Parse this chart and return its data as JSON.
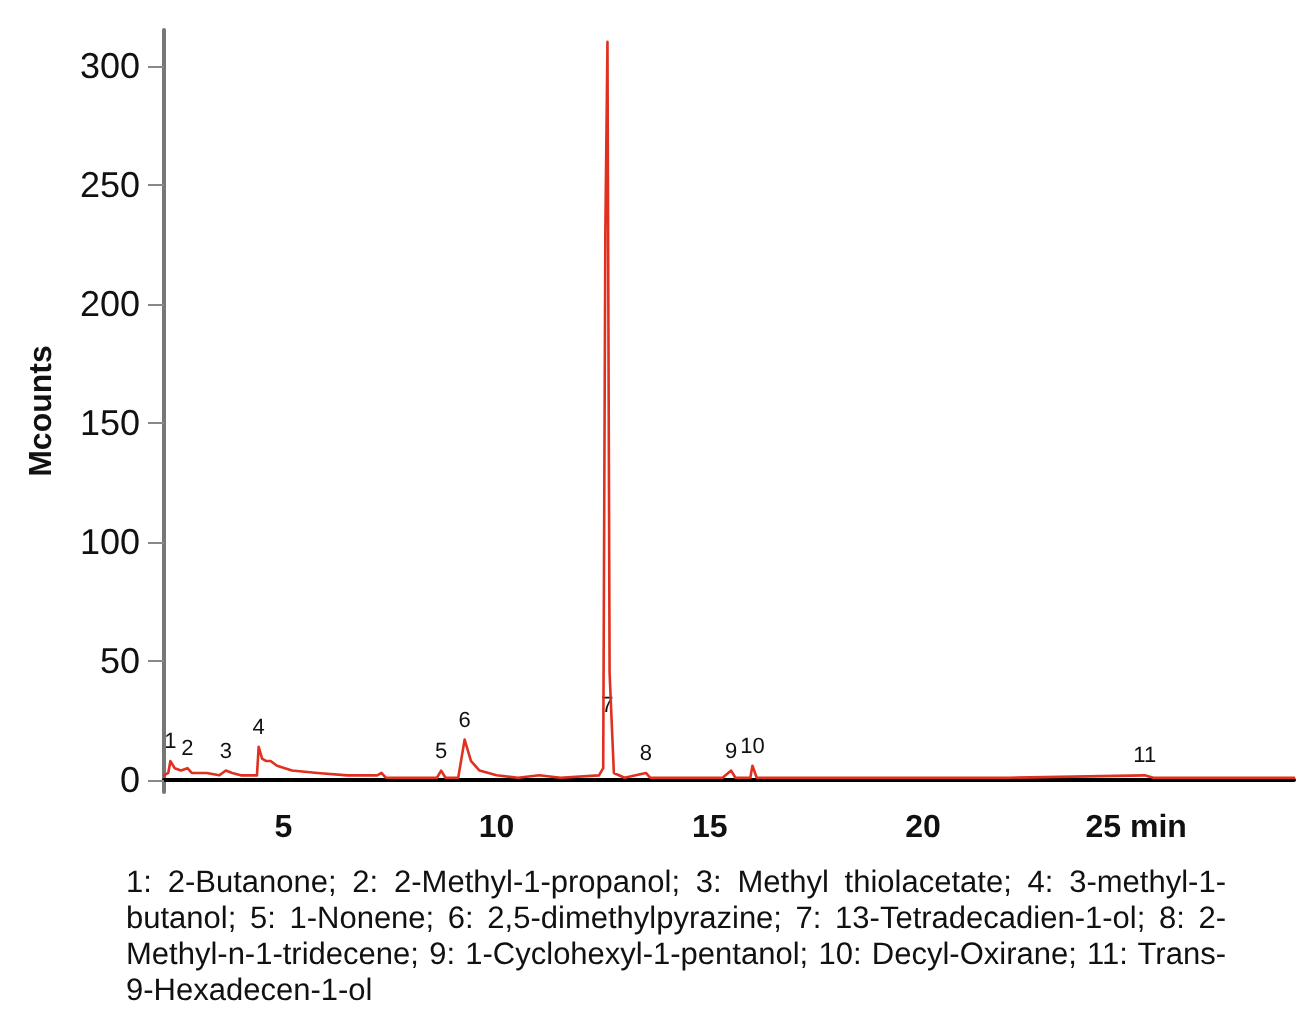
{
  "chart_data": {
    "type": "line",
    "ylabel": "Mcounts",
    "xlim": [
      2.2,
      28.7
    ],
    "xticks": [
      5,
      10,
      15,
      20,
      {
        "value": 25,
        "label": "25 min"
      }
    ],
    "ylim": [
      -5,
      315
    ],
    "yticks": [
      0,
      50,
      100,
      150,
      200,
      250,
      300
    ],
    "grid": false,
    "marker": "none",
    "line_style": "solid",
    "series": [
      {
        "color": "#e03020",
        "x": [
          2.2,
          2.3,
          2.35,
          2.45,
          2.6,
          2.75,
          2.85,
          3.2,
          3.5,
          3.65,
          3.8,
          4.0,
          4.38,
          4.42,
          4.5,
          4.6,
          4.7,
          4.85,
          5.2,
          5.8,
          6.5,
          7.2,
          7.3,
          7.4,
          8.0,
          8.6,
          8.7,
          8.8,
          9.1,
          9.25,
          9.4,
          9.6,
          10,
          10.5,
          11,
          11.5,
          12.4,
          12.5,
          12.55,
          12.6,
          12.65,
          12.75,
          13,
          13.5,
          13.6,
          14.5,
          15.3,
          15.5,
          15.6,
          15.95,
          16.0,
          16.1,
          17,
          20,
          22,
          25.2,
          25.4,
          28.7
        ],
        "values": [
          2,
          3,
          8,
          5,
          4,
          5,
          3,
          3,
          2,
          4,
          3,
          2,
          2,
          14,
          9,
          8,
          8,
          6,
          4,
          3,
          2,
          2,
          3,
          1,
          1,
          1,
          4,
          1,
          1,
          17,
          8,
          4,
          2,
          1,
          2,
          1,
          2,
          5,
          230,
          310,
          45,
          3,
          1,
          3,
          1,
          1,
          1,
          4,
          1,
          1,
          6,
          1,
          1,
          1,
          1,
          2,
          1,
          1
        ]
      }
    ],
    "annotations": [
      {
        "text": "1",
        "x": 2.35,
        "y": 8
      },
      {
        "text": "2",
        "x": 2.75,
        "y": 5
      },
      {
        "text": "3",
        "x": 3.65,
        "y": 4
      },
      {
        "text": "4",
        "x": 4.42,
        "y": 14
      },
      {
        "text": "5",
        "x": 8.7,
        "y": 4
      },
      {
        "text": "6",
        "x": 9.25,
        "y": 17
      },
      {
        "text": "7",
        "x": 12.6,
        "y": 23
      },
      {
        "text": "8",
        "x": 13.5,
        "y": 3
      },
      {
        "text": "9",
        "x": 15.5,
        "y": 4
      },
      {
        "text": "10",
        "x": 16.0,
        "y": 6
      },
      {
        "text": "11",
        "x": 25.2,
        "y": 2
      },
      "1: 2-Butanone; 2: 2-Methyl-1-propanol; 3: Methyl thiolacetate; 4: 3-methyl-1-butanol; 5: 1-Nonene; 6: 2,5-dimethylpyrazine; 7: 13-Tetradecadien-1-ol; 8: 2-Methyl-n-1-tridecene; 9: 1-Cyclohexyl-1-pentanol; 10: Decyl-Oxirane; 11: Trans-9-Hexadecen-1-ol"
    ]
  }
}
